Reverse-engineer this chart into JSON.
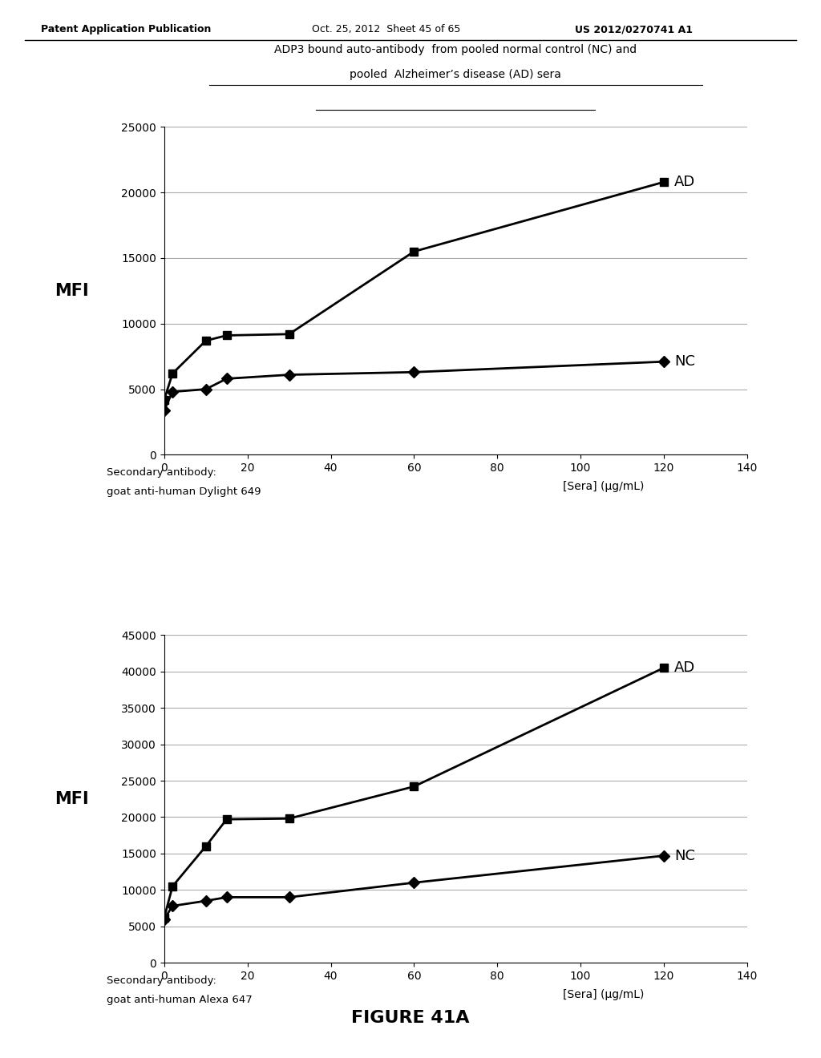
{
  "title_line1": "ADP3 bound auto-antibody  from pooled normal control (NC) and",
  "title_line2": "pooled  Alzheimer’s disease (AD) sera",
  "header_left": "Patent Application Publication",
  "header_mid": "Oct. 25, 2012  Sheet 45 of 65",
  "header_right": "US 2012/0270741 A1",
  "figure_label": "FIGURE 41A",
  "chart1": {
    "AD_x": [
      0,
      2,
      10,
      15,
      30,
      60,
      120
    ],
    "AD_y": [
      4200,
      6200,
      8700,
      9100,
      9200,
      15500,
      20800
    ],
    "NC_x": [
      0,
      2,
      10,
      15,
      30,
      60,
      120
    ],
    "NC_y": [
      3400,
      4800,
      5000,
      5800,
      6100,
      6300,
      7100
    ],
    "ylabel": "MFI",
    "xlabel": "[Sera] (µg/mL)",
    "ylim": [
      0,
      25000
    ],
    "xlim": [
      0,
      140
    ],
    "yticks": [
      0,
      5000,
      10000,
      15000,
      20000,
      25000
    ],
    "xticks": [
      0,
      20,
      40,
      60,
      80,
      100,
      120,
      140
    ],
    "secondary_line1": "Secondary antibody:",
    "secondary_line2": "goat anti-human Dylight 649"
  },
  "chart2": {
    "AD_x": [
      0,
      2,
      10,
      15,
      30,
      60,
      120
    ],
    "AD_y": [
      6200,
      10500,
      16000,
      19700,
      19800,
      24200,
      40500
    ],
    "NC_x": [
      0,
      2,
      10,
      15,
      30,
      60,
      120
    ],
    "NC_y": [
      6000,
      7800,
      8500,
      9000,
      9000,
      11000,
      14700
    ],
    "ylabel": "MFI",
    "xlabel": "[Sera] (µg/mL)",
    "ylim": [
      0,
      45000
    ],
    "xlim": [
      0,
      140
    ],
    "yticks": [
      0,
      5000,
      10000,
      15000,
      20000,
      25000,
      30000,
      35000,
      40000,
      45000
    ],
    "xticks": [
      0,
      20,
      40,
      60,
      80,
      100,
      120,
      140
    ],
    "secondary_line1": "Secondary antibody:",
    "secondary_line2": "goat anti-human Alexa 647"
  },
  "line_color": "#000000",
  "AD_marker": "s",
  "NC_marker": "D",
  "marker_size": 7,
  "line_width": 2.0,
  "background_color": "#ffffff",
  "grid_color": "#aaaaaa"
}
